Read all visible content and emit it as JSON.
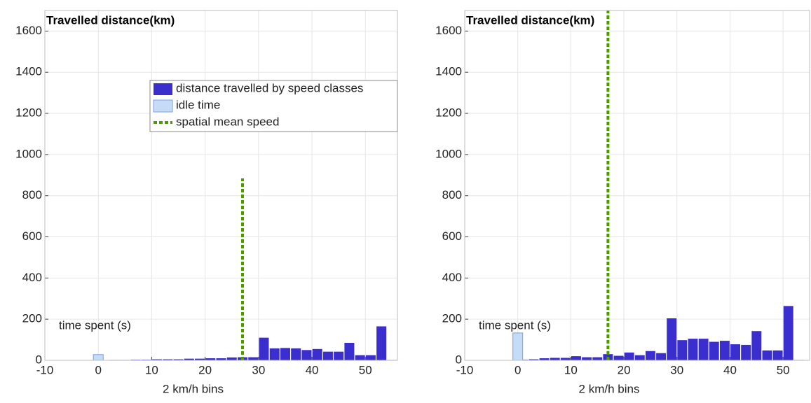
{
  "chart_data": [
    {
      "type": "bar",
      "title": "Travelled distance(km)",
      "xlabel": "2 km/h bins",
      "annotation": "time spent (s)",
      "xlim": [
        -10,
        56
      ],
      "ylim": [
        0,
        1700
      ],
      "xticks": [
        -10,
        0,
        10,
        20,
        30,
        40,
        50
      ],
      "yticks": [
        0,
        200,
        400,
        600,
        800,
        1000,
        1200,
        1400,
        1600
      ],
      "grid": true,
      "legend": "upper center",
      "series": [
        {
          "name": "distance travelled by speed classes",
          "color": "#3a2ecf",
          "x": [
            3,
            5,
            7,
            9,
            11,
            13,
            15,
            17,
            19,
            21,
            23,
            25,
            27,
            29,
            31,
            33,
            35,
            37,
            39,
            41,
            43,
            45,
            47,
            49,
            51,
            53,
            55
          ],
          "values": [
            2,
            2,
            3,
            3,
            5,
            5,
            5,
            8,
            8,
            10,
            10,
            14,
            15,
            15,
            110,
            58,
            60,
            58,
            50,
            55,
            42,
            42,
            85,
            25,
            25,
            165,
            2
          ]
        },
        {
          "name": "idle time",
          "color": "#c6dbf7",
          "x": [
            0
          ],
          "values": [
            28
          ]
        },
        {
          "name": "spatial mean speed",
          "type": "line",
          "color": "#4c9a00",
          "x": [
            27,
            27
          ],
          "values": [
            0,
            884
          ]
        }
      ]
    },
    {
      "type": "bar",
      "title": "Travelled distance(km)",
      "xlabel": "2 km/h bins",
      "annotation": "time spent (s)",
      "xlim": [
        -10,
        55
      ],
      "ylim": [
        0,
        1700
      ],
      "xticks": [
        -10,
        0,
        10,
        20,
        30,
        40,
        50
      ],
      "yticks": [
        0,
        200,
        400,
        600,
        800,
        1000,
        1200,
        1400,
        1600
      ],
      "grid": true,
      "series": [
        {
          "color": "#3a2ecf",
          "x": [
            1,
            3,
            5,
            7,
            9,
            11,
            13,
            15,
            17,
            19,
            21,
            23,
            25,
            27,
            29,
            31,
            33,
            35,
            37,
            39,
            41,
            43,
            45,
            47,
            49,
            51,
            53
          ],
          "values": [
            3,
            5,
            10,
            12,
            12,
            20,
            15,
            15,
            30,
            22,
            38,
            25,
            45,
            35,
            204,
            98,
            105,
            105,
            90,
            95,
            78,
            75,
            142,
            48,
            48,
            264,
            2
          ]
        },
        {
          "color": "#c6dbf7",
          "x": [
            0
          ],
          "values": [
            133
          ]
        },
        {
          "type": "line",
          "color": "#4c9a00",
          "x": [
            17,
            17
          ],
          "values": [
            0,
            1700
          ]
        }
      ]
    }
  ]
}
